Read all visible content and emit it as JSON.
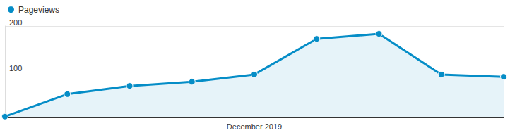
{
  "chart_data": {
    "type": "line",
    "categories": [
      null,
      null,
      null,
      null,
      "December 2019",
      null,
      null,
      null,
      null
    ],
    "series": [
      {
        "name": "Pageviews",
        "color": "#058dc7",
        "values": [
          2,
          51,
          69,
          78,
          94,
          172,
          183,
          94,
          89
        ]
      }
    ],
    "ylim": [
      0,
      200
    ],
    "yticks": [
      100,
      200
    ],
    "grid": true,
    "legend": "top-left",
    "marker": "circle"
  }
}
